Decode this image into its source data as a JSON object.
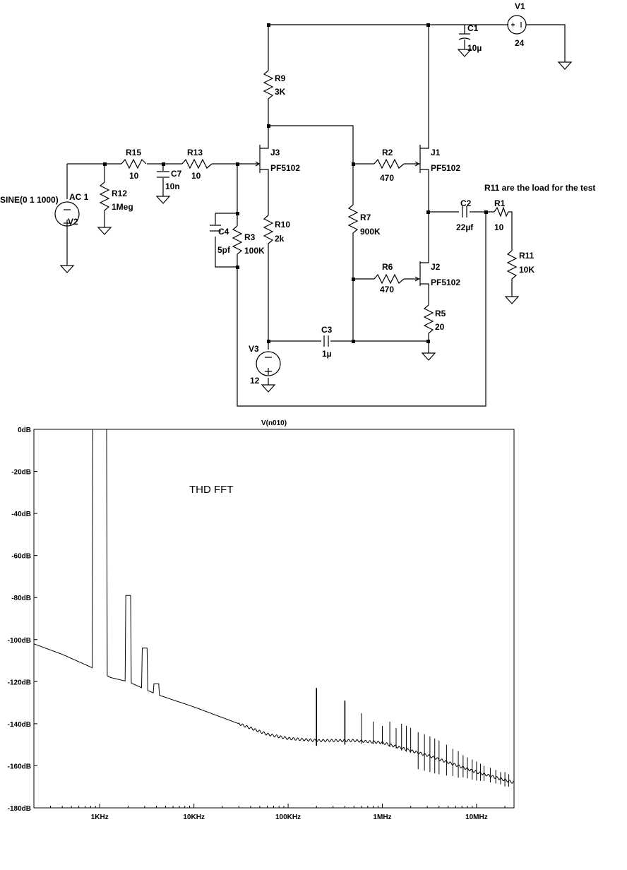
{
  "schematic": {
    "source_label": "SINE(0 1 1000)",
    "ac_label": "AC 1",
    "annotation": "R11 are the load for the test",
    "components": [
      {
        "ref": "V1",
        "value": "24"
      },
      {
        "ref": "V2",
        "value": ""
      },
      {
        "ref": "V3",
        "value": "12"
      },
      {
        "ref": "C1",
        "value": "10µ"
      },
      {
        "ref": "C2",
        "value": "22µf"
      },
      {
        "ref": "C3",
        "value": "1µ"
      },
      {
        "ref": "C4",
        "value": "5pf"
      },
      {
        "ref": "C7",
        "value": "10n"
      },
      {
        "ref": "R1",
        "value": "10"
      },
      {
        "ref": "R2",
        "value": "470"
      },
      {
        "ref": "R3",
        "value": "100K"
      },
      {
        "ref": "R5",
        "value": "20"
      },
      {
        "ref": "R6",
        "value": "470"
      },
      {
        "ref": "R7",
        "value": "900K"
      },
      {
        "ref": "R9",
        "value": "3K"
      },
      {
        "ref": "R10",
        "value": "2k"
      },
      {
        "ref": "R11",
        "value": "10K"
      },
      {
        "ref": "R12",
        "value": "1Meg"
      },
      {
        "ref": "R13",
        "value": "10"
      },
      {
        "ref": "R15",
        "value": "10"
      },
      {
        "ref": "J1",
        "value": "PF5102"
      },
      {
        "ref": "J2",
        "value": "PF5102"
      },
      {
        "ref": "J3",
        "value": "PF5102"
      }
    ]
  },
  "chart_data": {
    "type": "line",
    "title": "V(n010)",
    "annotation": "THD FFT",
    "xscale": "log",
    "xlim": [
      200,
      25000000
    ],
    "ylim": [
      -180,
      0
    ],
    "xticks": [
      {
        "value": 1000,
        "label": "1KHz"
      },
      {
        "value": 10000,
        "label": "10KHz"
      },
      {
        "value": 100000,
        "label": "100KHz"
      },
      {
        "value": 1000000,
        "label": "1MHz"
      },
      {
        "value": 10000000,
        "label": "10MHz"
      }
    ],
    "yticks": [
      {
        "value": 0,
        "label": "0dB"
      },
      {
        "value": -20,
        "label": "-20dB"
      },
      {
        "value": -40,
        "label": "-40dB"
      },
      {
        "value": -60,
        "label": "-60dB"
      },
      {
        "value": -80,
        "label": "-80dB"
      },
      {
        "value": -100,
        "label": "-100dB"
      },
      {
        "value": -120,
        "label": "-120dB"
      },
      {
        "value": -140,
        "label": "-140dB"
      },
      {
        "value": -160,
        "label": "-160dB"
      },
      {
        "value": -180,
        "label": "-180dB"
      }
    ],
    "series": [
      {
        "name": "",
        "color": "#000000",
        "floor": [
          [
            200,
            -102
          ],
          [
            400,
            -107
          ],
          [
            800,
            -113
          ],
          [
            1300,
            -118
          ],
          [
            2000,
            -120
          ],
          [
            4000,
            -126
          ],
          [
            10000,
            -132
          ],
          [
            30000,
            -140
          ],
          [
            60000,
            -145
          ],
          [
            100000,
            -147
          ],
          [
            200000,
            -148
          ],
          [
            500000,
            -148
          ],
          [
            1000000,
            -149
          ],
          [
            3000000,
            -155
          ],
          [
            10000000,
            -163
          ],
          [
            25000000,
            -168
          ]
        ],
        "peaks": [
          {
            "x": 1000,
            "y": 0
          },
          {
            "x": 2000,
            "y": -79
          },
          {
            "x": 3000,
            "y": -104
          },
          {
            "x": 4000,
            "y": -121
          }
        ],
        "spurs": [
          {
            "x": 200000,
            "y": -123
          },
          {
            "x": 400000,
            "y": -129
          },
          {
            "x": 600000,
            "y": -135
          },
          {
            "x": 800000,
            "y": -139
          },
          {
            "x": 1000000,
            "y": -141
          },
          {
            "x": 1200000,
            "y": -139
          },
          {
            "x": 1400000,
            "y": -142
          },
          {
            "x": 1600000,
            "y": -140
          },
          {
            "x": 1800000,
            "y": -141
          },
          {
            "x": 2000000,
            "y": -142
          },
          {
            "x": 2400000,
            "y": -144
          },
          {
            "x": 2800000,
            "y": -145
          },
          {
            "x": 3200000,
            "y": -146
          },
          {
            "x": 3600000,
            "y": -147
          },
          {
            "x": 4000000,
            "y": -148
          },
          {
            "x": 4800000,
            "y": -150
          },
          {
            "x": 5600000,
            "y": -152
          },
          {
            "x": 6400000,
            "y": -153
          },
          {
            "x": 7200000,
            "y": -155
          },
          {
            "x": 8000000,
            "y": -156
          },
          {
            "x": 9000000,
            "y": -157
          },
          {
            "x": 10000000,
            "y": -158
          },
          {
            "x": 11000000,
            "y": -159
          },
          {
            "x": 12000000,
            "y": -160
          },
          {
            "x": 14000000,
            "y": -161
          },
          {
            "x": 16000000,
            "y": -162
          },
          {
            "x": 18000000,
            "y": -163
          },
          {
            "x": 20000000,
            "y": -163
          },
          {
            "x": 22000000,
            "y": -164
          }
        ]
      }
    ]
  }
}
